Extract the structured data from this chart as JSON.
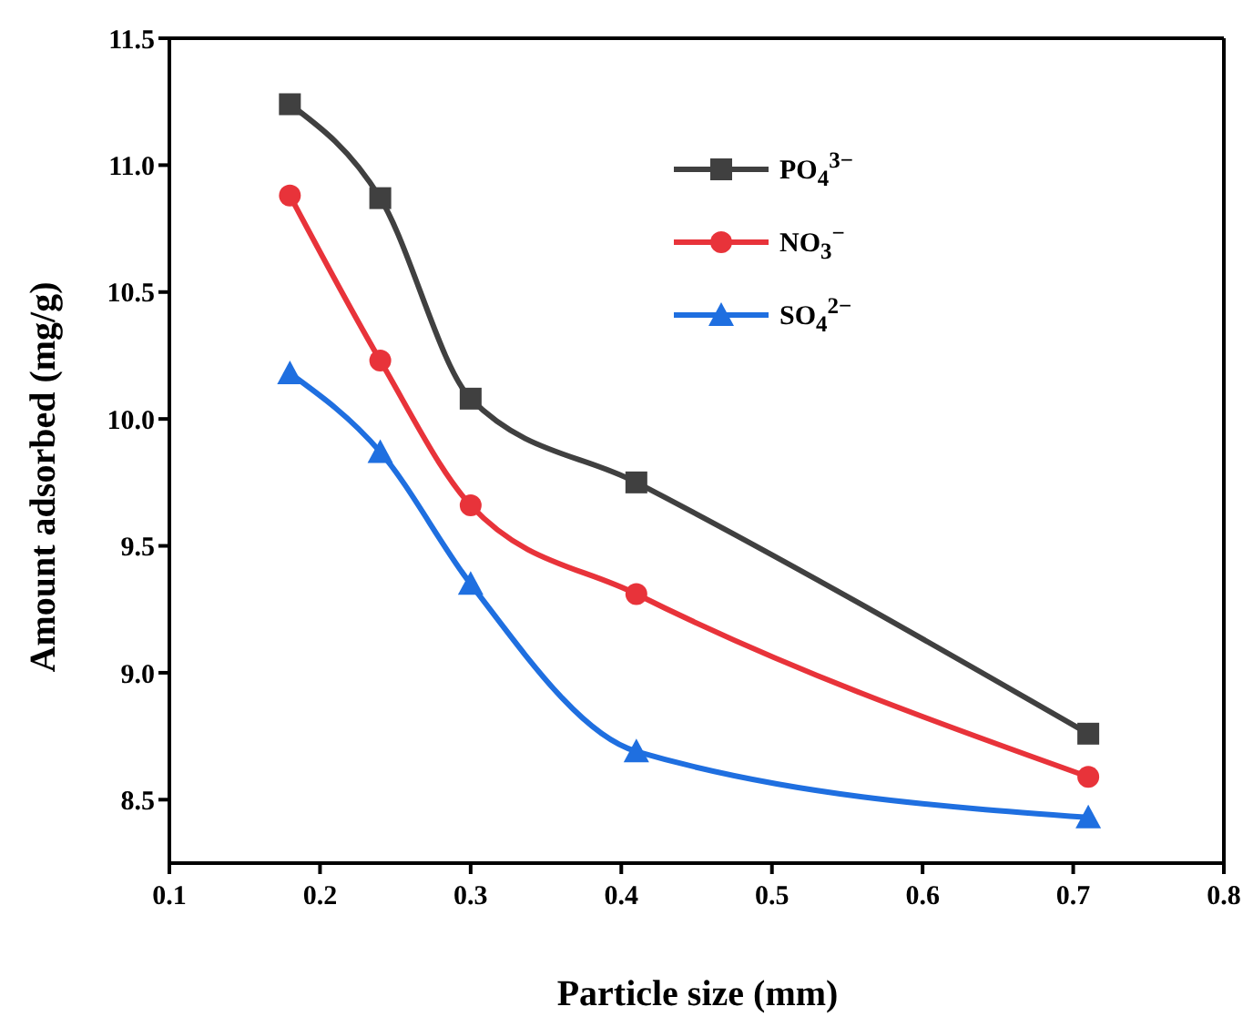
{
  "chart_data": {
    "type": "line",
    "xlabel": "Particle size (mm)",
    "ylabel": "Amount adsorbed (mg/g)",
    "x": [
      0.18,
      0.24,
      0.3,
      0.41,
      0.71
    ],
    "series": [
      {
        "name": "PO$_{4}$$^{3−}$",
        "color": "#404040",
        "marker": "square",
        "values": [
          11.24,
          10.87,
          10.08,
          9.75,
          8.76
        ]
      },
      {
        "name": "NO$_{3}$$^{−}$",
        "color": "#e8333a",
        "marker": "circle",
        "values": [
          10.88,
          10.23,
          9.66,
          9.31,
          8.59
        ]
      },
      {
        "name": "SO$_{4}$$^{2−}$",
        "color": "#1f6fe0",
        "marker": "triangle",
        "values": [
          10.18,
          9.87,
          9.35,
          8.69,
          8.43
        ]
      }
    ],
    "xlim": [
      0.1,
      0.8
    ],
    "xticks": [
      0.1,
      0.2,
      0.3,
      0.4,
      0.5,
      0.6,
      0.7,
      0.8
    ],
    "ylim": [
      8.25,
      11.5
    ],
    "yticks": [
      8.5,
      {
        "value": 9,
        "label": "9.0"
      },
      9.5,
      {
        "value": 10,
        "label": "10.0"
      },
      10.5,
      {
        "value": 11,
        "label": "11.0"
      },
      11.5
    ],
    "grid": false,
    "legend": "top right",
    "line_style": "solid"
  }
}
